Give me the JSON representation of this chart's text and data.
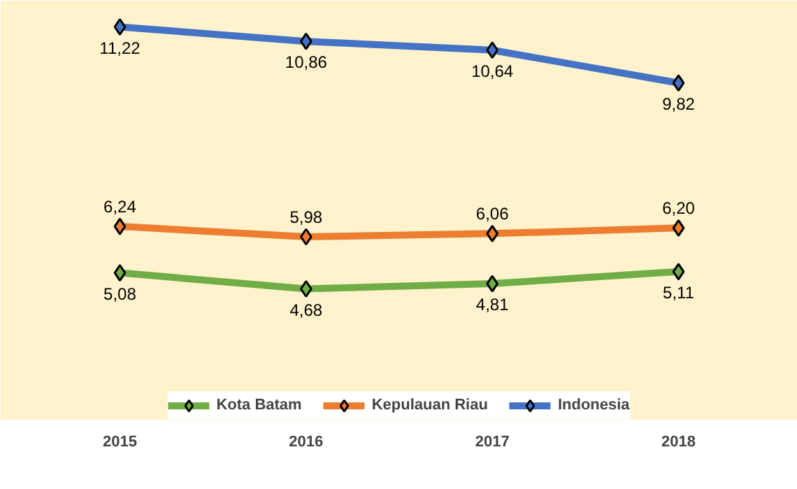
{
  "chart_data": {
    "type": "line",
    "categories": [
      "2015",
      "2016",
      "2017",
      "2018"
    ],
    "series": [
      {
        "name": "Kota Batam",
        "color": "#70ad47",
        "values": [
          5.08,
          4.68,
          4.81,
          5.11
        ],
        "value_labels": [
          "5,08",
          "4,68",
          "4,81",
          "5,11"
        ]
      },
      {
        "name": "Kepulauan Riau",
        "color": "#ed7d31",
        "values": [
          6.24,
          5.98,
          6.06,
          6.2
        ],
        "value_labels": [
          "6,24",
          "5,98",
          "6,06",
          "6,20"
        ]
      },
      {
        "name": "Indonesia",
        "color": "#4472c4",
        "values": [
          11.22,
          10.86,
          10.64,
          9.82
        ],
        "value_labels": [
          "11,22",
          "10,86",
          "10,64",
          "9,82"
        ]
      }
    ],
    "marker": "diamond",
    "legend": "bottom",
    "tick_labels": "x"
  }
}
